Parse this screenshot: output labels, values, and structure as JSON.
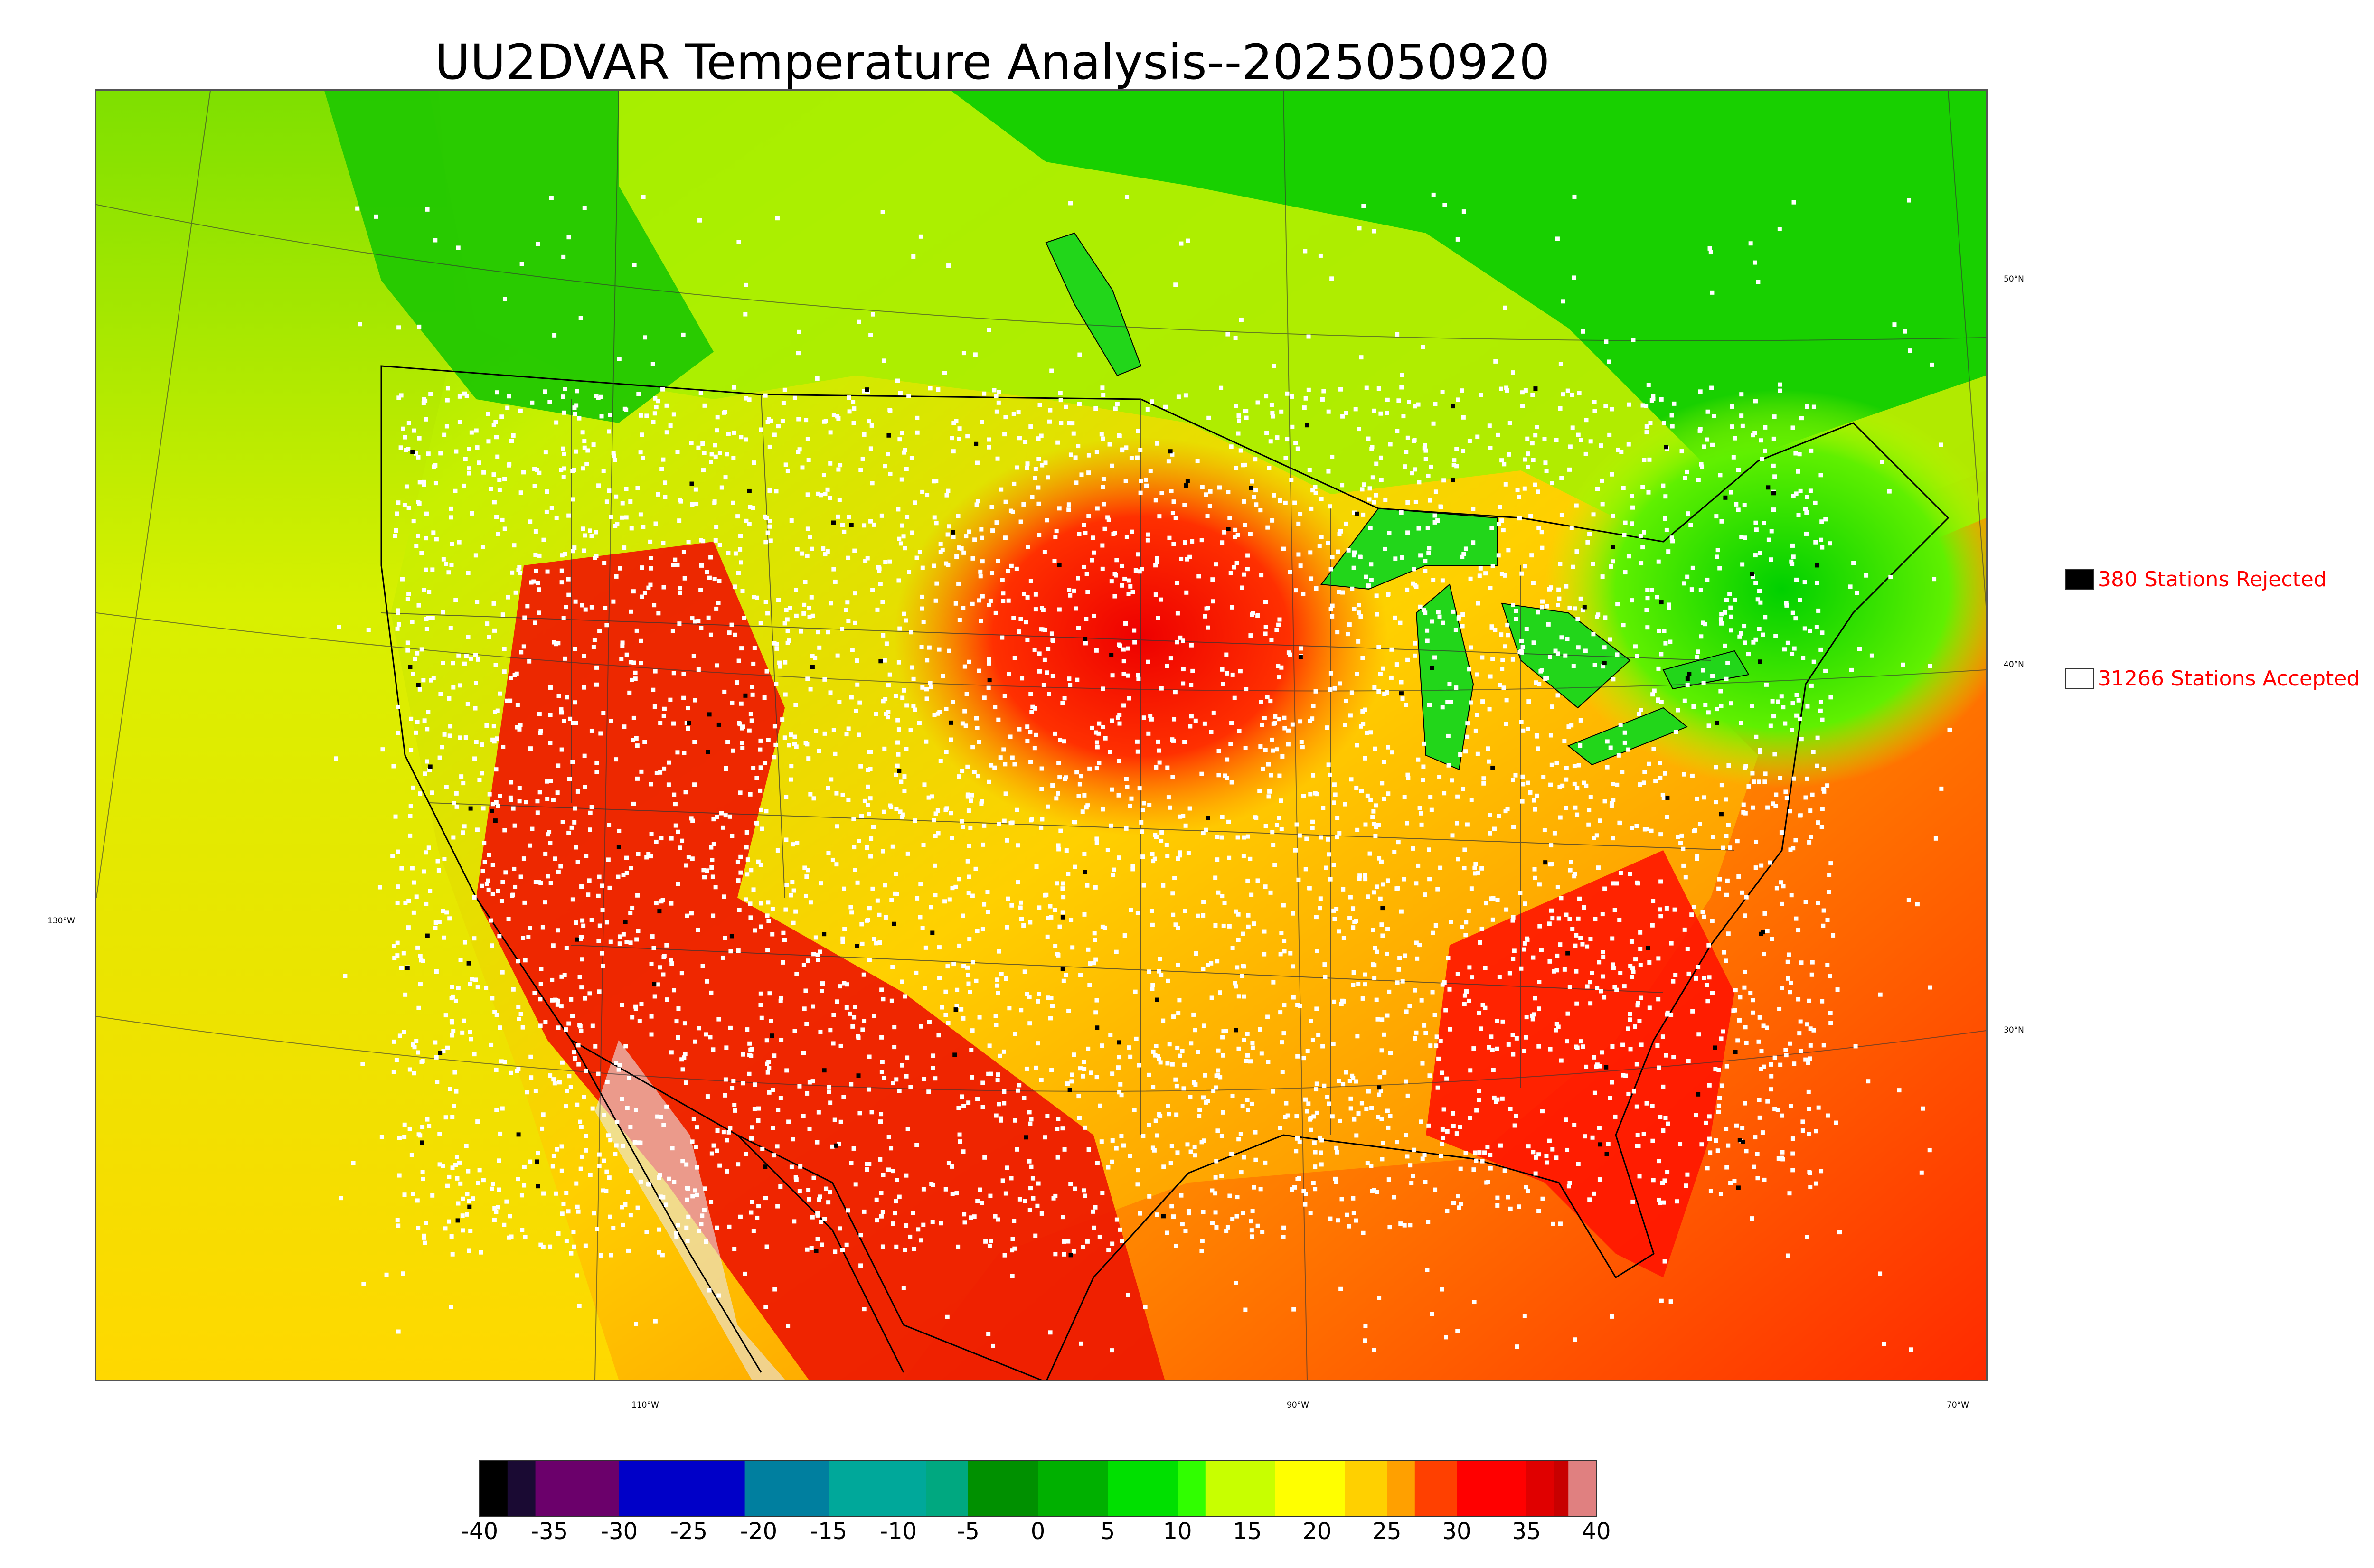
{
  "title": "UU2DVAR Temperature Analysis--2025050920",
  "legend": [
    {
      "label": "380 Stations Rejected",
      "swatch_color": "#000000"
    },
    {
      "label": "31266 Stations Accepted",
      "swatch_color": "#ffffff"
    }
  ],
  "lat_labels": [
    "50°N",
    "40°N",
    "30°N"
  ],
  "lon_labels": [
    "130°W",
    "110°W",
    "90°W",
    "70°W"
  ],
  "colorbar": {
    "ticks": [
      "-40",
      "-35",
      "-30",
      "-25",
      "-20",
      "-15",
      "-10",
      "-5",
      "0",
      "5",
      "10",
      "15",
      "20",
      "25",
      "30",
      "35",
      "40"
    ],
    "range": [
      -40,
      40
    ],
    "stops": [
      {
        "v": -40,
        "c": "#000000"
      },
      {
        "v": -38,
        "c": "#1a0a33"
      },
      {
        "v": -36,
        "c": "#6b006b"
      },
      {
        "v": -30,
        "c": "#0000c8"
      },
      {
        "v": -21,
        "c": "#007f9f"
      },
      {
        "v": -15,
        "c": "#00a89a"
      },
      {
        "v": -8,
        "c": "#00a880"
      },
      {
        "v": -5,
        "c": "#009000"
      },
      {
        "v": 0,
        "c": "#00b000"
      },
      {
        "v": 5,
        "c": "#00e000"
      },
      {
        "v": 10,
        "c": "#30ff00"
      },
      {
        "v": 12,
        "c": "#c8ff00"
      },
      {
        "v": 17,
        "c": "#ffff00"
      },
      {
        "v": 22,
        "c": "#ffd000"
      },
      {
        "v": 25,
        "c": "#ffa000"
      },
      {
        "v": 27,
        "c": "#ff4000"
      },
      {
        "v": 30,
        "c": "#ff0000"
      },
      {
        "v": 35,
        "c": "#e00000"
      },
      {
        "v": 37,
        "c": "#c80000"
      },
      {
        "v": 38,
        "c": "#e08080"
      },
      {
        "v": 40,
        "c": "#d0d0d0"
      }
    ]
  },
  "colors": {
    "ocean_west": "#c8f000",
    "ocean_east": "#ff7000",
    "canada": "#10d000",
    "heat": "#ee1a00",
    "warm": "#ff9a00",
    "mild": "#ffd700",
    "cool": "#aaff00",
    "lake": "#22d61a",
    "station_accepted": "#ffffff",
    "station_rejected": "#000000"
  }
}
